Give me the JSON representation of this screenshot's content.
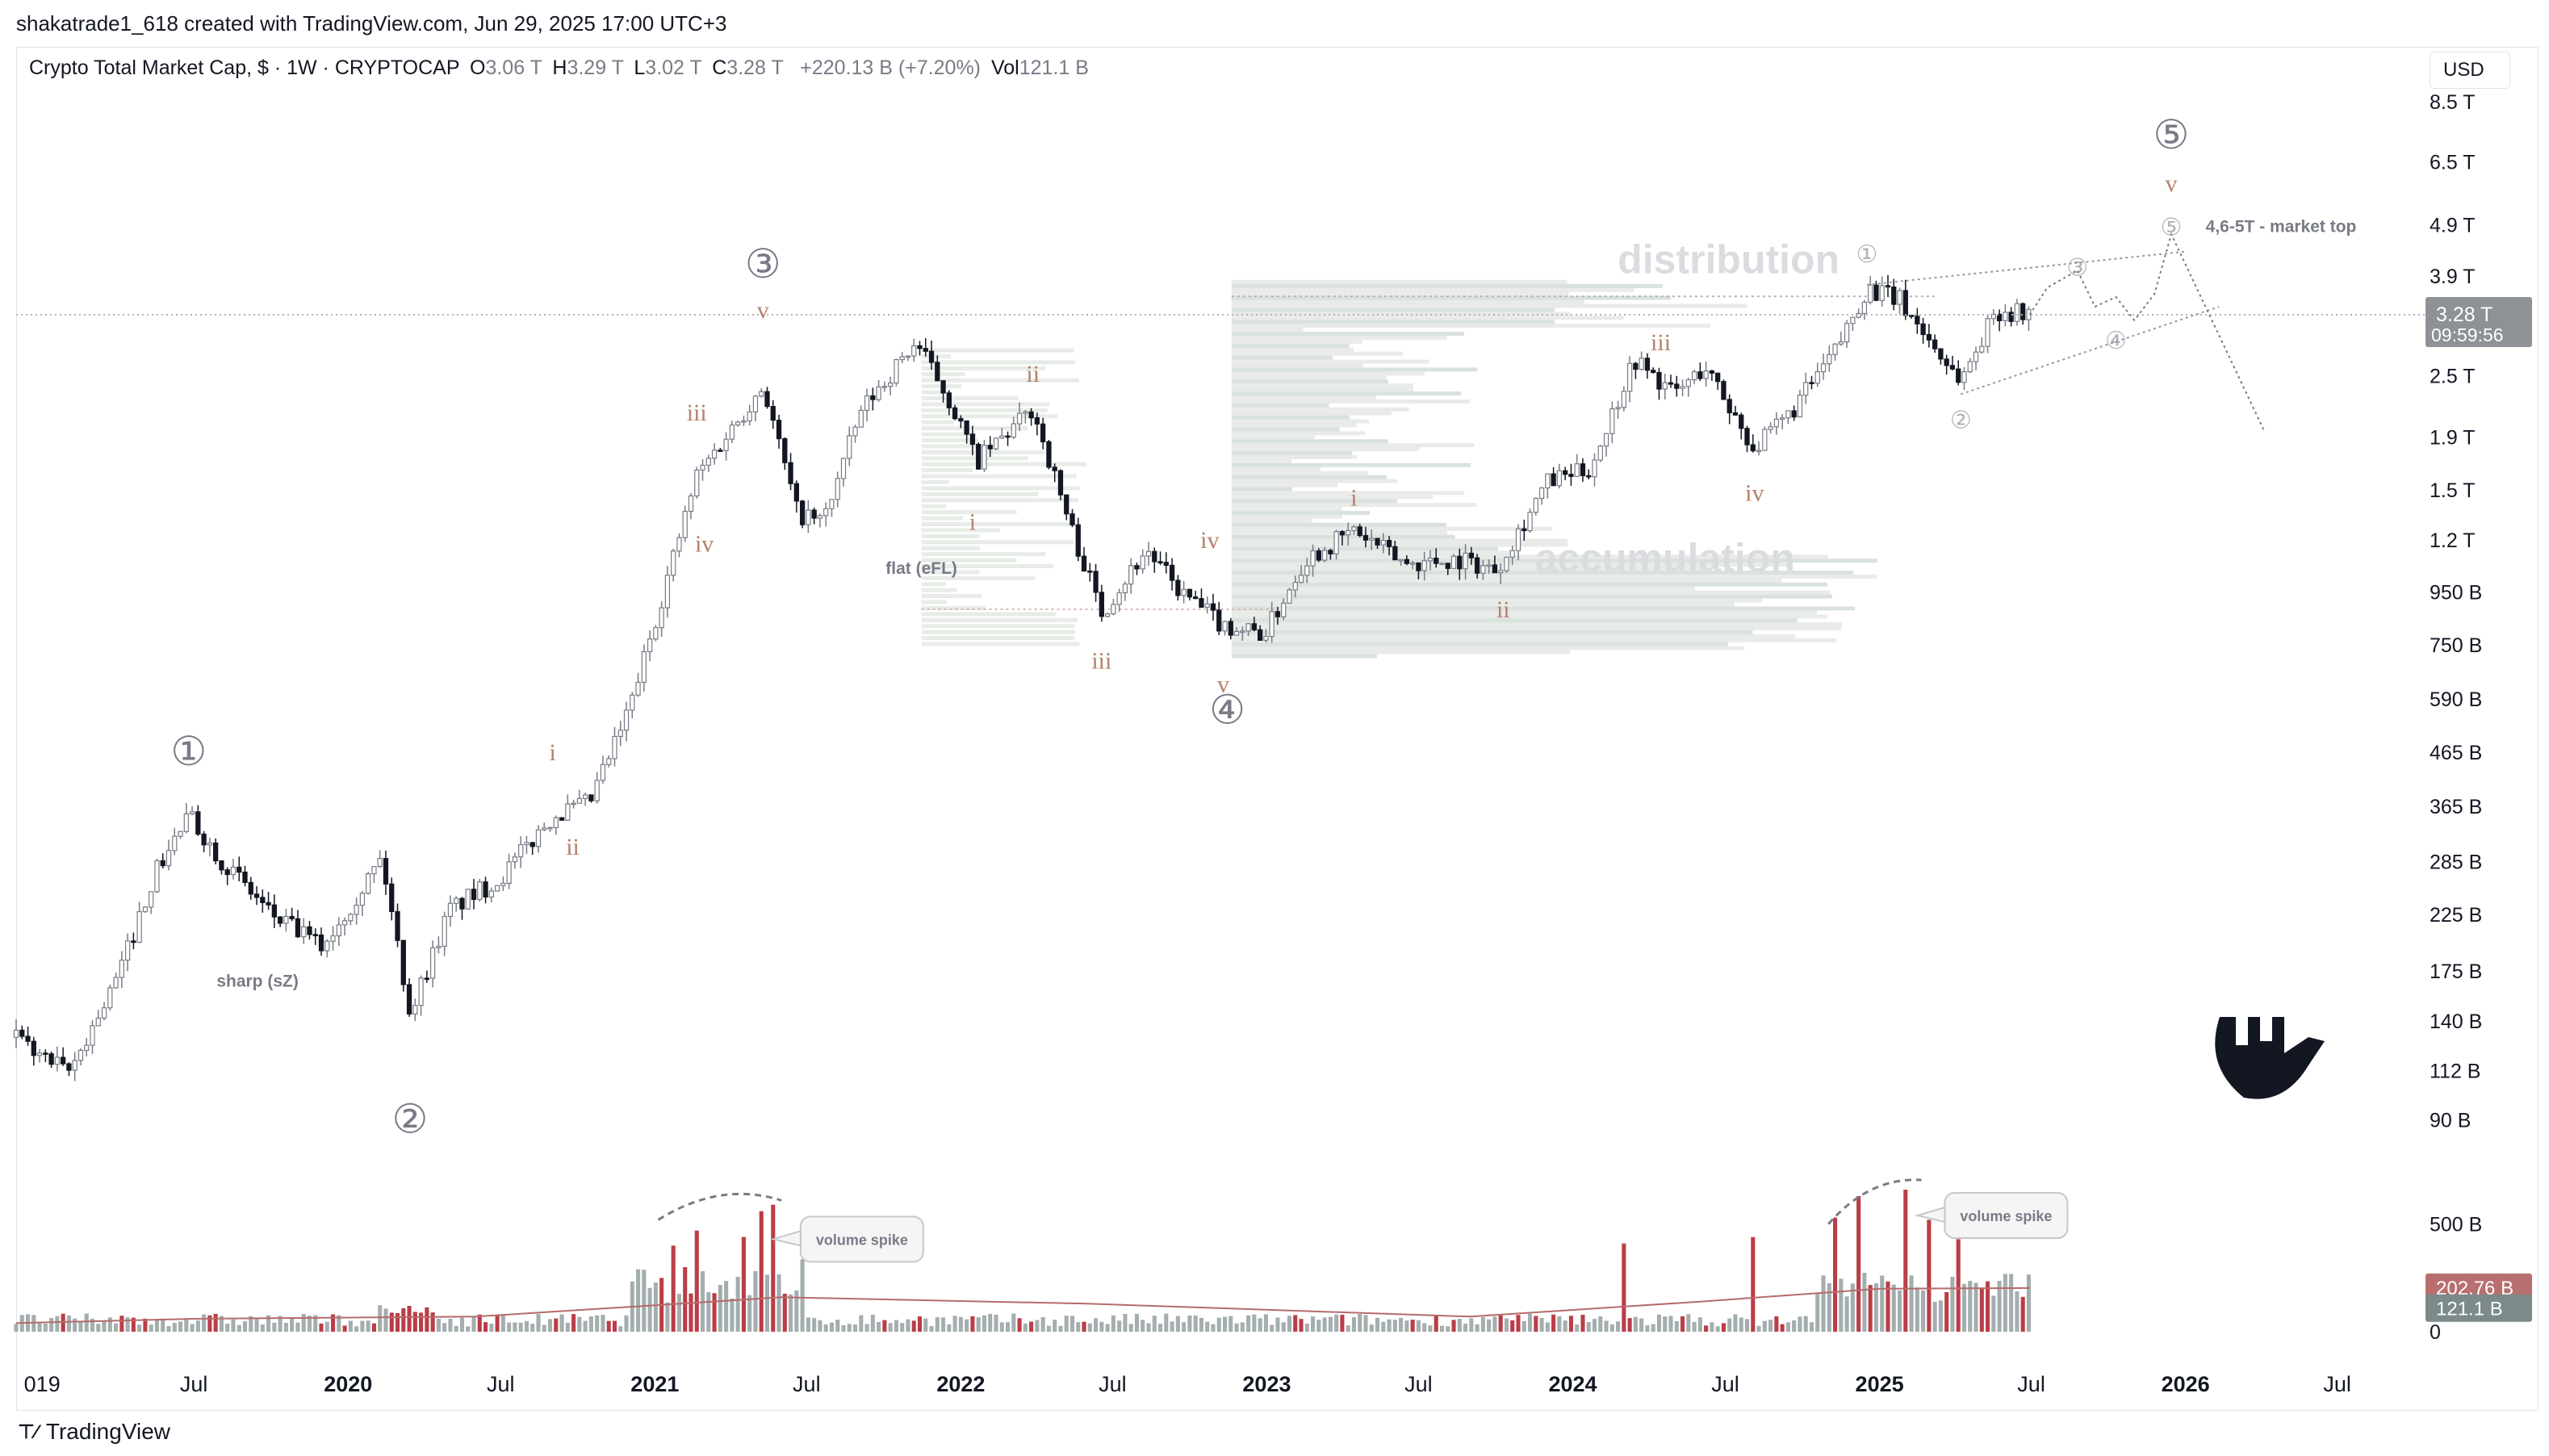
{
  "attribution": "shakatrade1_618 created with TradingView.com, Jun 29, 2025 17:00 UTC+3",
  "header": {
    "symbol": "Crypto Total Market Cap, $ · 1W · CRYPTOCAP",
    "o_label": "O",
    "o_value": "3.06 T",
    "h_label": "H",
    "h_value": "3.29 T",
    "l_label": "L",
    "l_value": "3.02 T",
    "c_label": "C",
    "c_value": "3.28 T",
    "change": "+220.13 B (+7.20%)",
    "vol_label": "Vol",
    "vol_value": "121.1 B"
  },
  "currency": "USD",
  "footer": {
    "brand": "TradingView",
    "icon": "tradingview-logo-icon"
  },
  "colors": {
    "up": "#787b86",
    "down": "#131722",
    "vol_red": "#b22833",
    "vol_gray": "#9aa5a6",
    "wave_label": "#b5816a",
    "price_badge": "#8e9195",
    "vol_badge_red": "#b86f6f",
    "vol_badge_gray": "#7c8a8a"
  },
  "chart_data": {
    "type": "candlestick",
    "scale": "log",
    "ylim": [
      80000000000,
      9000000000000
    ],
    "x_range": [
      "2018-12-01",
      "2026-09-01"
    ],
    "x_ticks": [
      {
        "date": "2019-01-01",
        "label": "019"
      },
      {
        "date": "2019-07-01",
        "label": "Jul"
      },
      {
        "date": "2020-01-01",
        "label": "2020",
        "bold": true
      },
      {
        "date": "2020-07-01",
        "label": "Jul"
      },
      {
        "date": "2021-01-01",
        "label": "2021",
        "bold": true
      },
      {
        "date": "2021-07-01",
        "label": "Jul"
      },
      {
        "date": "2022-01-01",
        "label": "2022",
        "bold": true
      },
      {
        "date": "2022-07-01",
        "label": "Jul"
      },
      {
        "date": "2023-01-01",
        "label": "2023",
        "bold": true
      },
      {
        "date": "2023-07-01",
        "label": "Jul"
      },
      {
        "date": "2024-01-01",
        "label": "2024",
        "bold": true
      },
      {
        "date": "2024-07-01",
        "label": "Jul"
      },
      {
        "date": "2025-01-01",
        "label": "2025",
        "bold": true
      },
      {
        "date": "2025-07-01",
        "label": "Jul"
      },
      {
        "date": "2026-01-01",
        "label": "2026",
        "bold": true
      },
      {
        "date": "2026-07-01",
        "label": "Jul"
      }
    ],
    "y_ticks": [
      {
        "value": 8500000000000,
        "label": "8.5 T"
      },
      {
        "value": 6500000000000,
        "label": "6.5 T"
      },
      {
        "value": 4900000000000,
        "label": "4.9 T"
      },
      {
        "value": 3900000000000,
        "label": "3.9 T"
      },
      {
        "value": 2500000000000,
        "label": "2.5 T"
      },
      {
        "value": 1900000000000,
        "label": "1.9 T"
      },
      {
        "value": 1500000000000,
        "label": "1.5 T"
      },
      {
        "value": 1200000000000,
        "label": "1.2 T"
      },
      {
        "value": 950000000000,
        "label": "950 B"
      },
      {
        "value": 750000000000,
        "label": "750 B"
      },
      {
        "value": 590000000000,
        "label": "590 B"
      },
      {
        "value": 465000000000,
        "label": "465 B"
      },
      {
        "value": 365000000000,
        "label": "365 B"
      },
      {
        "value": 285000000000,
        "label": "285 B"
      },
      {
        "value": 225000000000,
        "label": "225 B"
      },
      {
        "value": 175000000000,
        "label": "175 B"
      },
      {
        "value": 140000000000,
        "label": "140 B"
      },
      {
        "value": 112000000000,
        "label": "112 B"
      },
      {
        "value": 90000000000,
        "label": "90 B"
      }
    ],
    "last_price": {
      "value": 3280000000000,
      "label": "3.28 T",
      "countdown": "09:59:56"
    },
    "price_path": [
      [
        "2018-12-01",
        130000000000.0
      ],
      [
        "2019-02-01",
        110000000000.0
      ],
      [
        "2019-04-01",
        170000000000.0
      ],
      [
        "2019-05-15",
        270000000000.0
      ],
      [
        "2019-06-25",
        350000000000.0
      ],
      [
        "2019-08-01",
        290000000000.0
      ],
      [
        "2019-10-01",
        225000000000.0
      ],
      [
        "2019-12-01",
        195000000000.0
      ],
      [
        "2020-02-10",
        290000000000.0
      ],
      [
        "2020-03-15",
        145000000000.0
      ],
      [
        "2020-05-01",
        230000000000.0
      ],
      [
        "2020-07-01",
        265000000000.0
      ],
      [
        "2020-09-01",
        350000000000.0
      ],
      [
        "2020-10-15",
        370000000000.0
      ],
      [
        "2020-12-01",
        560000000000.0
      ],
      [
        "2021-01-15",
        1000000000000.0
      ],
      [
        "2021-02-20",
        1600000000000.0
      ],
      [
        "2021-04-10",
        2050000000000.0
      ],
      [
        "2021-05-10",
        2400000000000.0
      ],
      [
        "2021-06-20",
        1350000000000.0
      ],
      [
        "2021-07-20",
        1300000000000.0
      ],
      [
        "2021-09-05",
        2150000000000.0
      ],
      [
        "2021-11-08",
        2900000000000.0
      ],
      [
        "2021-12-15",
        2300000000000.0
      ],
      [
        "2022-01-20",
        1700000000000.0
      ],
      [
        "2022-03-28",
        2150000000000.0
      ],
      [
        "2022-05-10",
        1300000000000.0
      ],
      [
        "2022-06-18",
        870000000000.0
      ],
      [
        "2022-08-10",
        1150000000000.0
      ],
      [
        "2022-09-20",
        950000000000.0
      ],
      [
        "2022-11-10",
        820000000000.0
      ],
      [
        "2022-12-30",
        790000000000.0
      ],
      [
        "2023-02-15",
        1100000000000.0
      ],
      [
        "2023-04-15",
        1250000000000.0
      ],
      [
        "2023-06-15",
        1080000000000.0
      ],
      [
        "2023-08-20",
        1100000000000.0
      ],
      [
        "2023-10-01",
        1050000000000.0
      ],
      [
        "2023-12-01",
        1550000000000.0
      ],
      [
        "2024-01-22",
        1650000000000.0
      ],
      [
        "2024-03-14",
        2700000000000.0
      ],
      [
        "2024-05-01",
        2300000000000.0
      ],
      [
        "2024-06-07",
        2600000000000.0
      ],
      [
        "2024-08-05",
        1800000000000.0
      ],
      [
        "2024-09-15",
        2100000000000.0
      ],
      [
        "2024-11-10",
        2800000000000.0
      ],
      [
        "2024-12-17",
        3700000000000.0
      ],
      [
        "2025-01-25",
        3500000000000.0
      ],
      [
        "2025-03-10",
        2800000000000.0
      ],
      [
        "2025-04-08",
        2450000000000.0
      ],
      [
        "2025-05-20",
        3350000000000.0
      ],
      [
        "2025-06-29",
        3280000000000.0
      ]
    ],
    "volume": {
      "ylim": [
        0,
        750000000000
      ],
      "ma_label": "202.76 B",
      "last_label": "121.1 B",
      "axis_labels": [
        {
          "value": 500000000000,
          "label": "500 B"
        },
        {
          "value": 0,
          "label": "0"
        }
      ],
      "spikes": [
        [
          "2020-03-15",
          120000000000.0
        ],
        [
          "2021-01-10",
          250000000000.0
        ],
        [
          "2021-01-20",
          400000000000.0
        ],
        [
          "2021-02-05",
          300000000000.0
        ],
        [
          "2021-02-22",
          470000000000.0
        ],
        [
          "2021-04-18",
          440000000000.0
        ],
        [
          "2021-05-10",
          560000000000.0
        ],
        [
          "2021-05-19",
          590000000000.0
        ],
        [
          "2024-03-05",
          410000000000.0
        ],
        [
          "2024-08-05",
          440000000000.0
        ],
        [
          "2024-11-11",
          530000000000.0
        ],
        [
          "2024-12-09",
          630000000000.0
        ],
        [
          "2025-02-03",
          660000000000.0
        ],
        [
          "2025-03-03",
          520000000000.0
        ],
        [
          "2025-04-07",
          430000000000.0
        ]
      ],
      "ma_path": [
        [
          "2018-12-01",
          40000000000.0
        ],
        [
          "2019-07-01",
          60000000000.0
        ],
        [
          "2020-06-01",
          70000000000.0
        ],
        [
          "2021-06-01",
          160000000000.0
        ],
        [
          "2022-06-01",
          130000000000.0
        ],
        [
          "2023-09-01",
          70000000000.0
        ],
        [
          "2024-06-01",
          140000000000.0
        ],
        [
          "2025-01-01",
          200000000000.0
        ],
        [
          "2025-06-29",
          203000000000.0
        ]
      ]
    },
    "annotations": {
      "major_waves": [
        {
          "label": "①",
          "date": "2019-06-25",
          "price": 465000000000.0
        },
        {
          "label": "②",
          "date": "2020-03-15",
          "price": 90000000000.0
        },
        {
          "label": "③",
          "date": "2021-05-10",
          "price": 4100000000000.0
        },
        {
          "label": "④",
          "date": "2022-11-15",
          "price": 560000000000.0
        },
        {
          "label": "⑤",
          "date": "2025-12-15",
          "price": 7300000000000.0
        }
      ],
      "minor_waves": [
        {
          "label": "v",
          "date": "2021-05-10",
          "price": 3350000000000.0
        },
        {
          "label": "iii",
          "date": "2021-02-20",
          "price": 2120000000000.0
        },
        {
          "label": "iv",
          "date": "2021-03-01",
          "price": 1180000000000.0
        },
        {
          "label": "i",
          "date": "2020-09-01",
          "price": 465000000000.0
        },
        {
          "label": "ii",
          "date": "2020-09-25",
          "price": 305000000000.0
        },
        {
          "label": "i",
          "date": "2022-01-15",
          "price": 1300000000000.0
        },
        {
          "label": "ii",
          "date": "2022-03-28",
          "price": 2520000000000.0
        },
        {
          "label": "iii",
          "date": "2022-06-18",
          "price": 700000000000.0
        },
        {
          "label": "iv",
          "date": "2022-10-25",
          "price": 1200000000000.0
        },
        {
          "label": "v",
          "date": "2022-11-10",
          "price": 630000000000.0
        },
        {
          "label": "i",
          "date": "2023-04-15",
          "price": 1450000000000.0
        },
        {
          "label": "ii",
          "date": "2023-10-10",
          "price": 880000000000.0
        },
        {
          "label": "iii",
          "date": "2024-04-15",
          "price": 2900000000000.0
        },
        {
          "label": "iv",
          "date": "2024-08-05",
          "price": 1480000000000.0
        },
        {
          "label": "v",
          "date": "2025-12-15",
          "price": 5900000000000.0
        }
      ],
      "triangle_labels": [
        {
          "label": "①",
          "date": "2024-12-17",
          "price": 4300000000000.0
        },
        {
          "label": "②",
          "date": "2025-04-08",
          "price": 2050000000000.0
        },
        {
          "label": "③",
          "date": "2025-08-25",
          "price": 4050000000000.0
        },
        {
          "label": "④",
          "date": "2025-10-10",
          "price": 2920000000000.0
        },
        {
          "label": "⑤",
          "date": "2025-12-15",
          "price": 4850000000000.0
        }
      ],
      "text_labels": [
        {
          "text": "distribution",
          "date": "2024-07-05",
          "price": 3950000000000.0,
          "style": "big"
        },
        {
          "text": "accumulation",
          "date": "2024-04-20",
          "price": 1040000000000.0,
          "style": "big"
        },
        {
          "text": "flat (eFL)",
          "date": "2021-11-15",
          "price": 1030000000000.0,
          "style": "small"
        },
        {
          "text": "sharp (sZ)",
          "date": "2019-09-15",
          "price": 163000000000.0,
          "style": "small"
        },
        {
          "text": "4,6-5T - market top",
          "date": "2026-04-25",
          "price": 4750000000000.0,
          "style": "note"
        }
      ],
      "callouts": [
        {
          "text": "volume spike",
          "date": "2021-09-05",
          "volume": 430000000000.0
        },
        {
          "text": "volume spike",
          "date": "2025-06-01",
          "volume": 540000000000.0
        }
      ]
    }
  }
}
